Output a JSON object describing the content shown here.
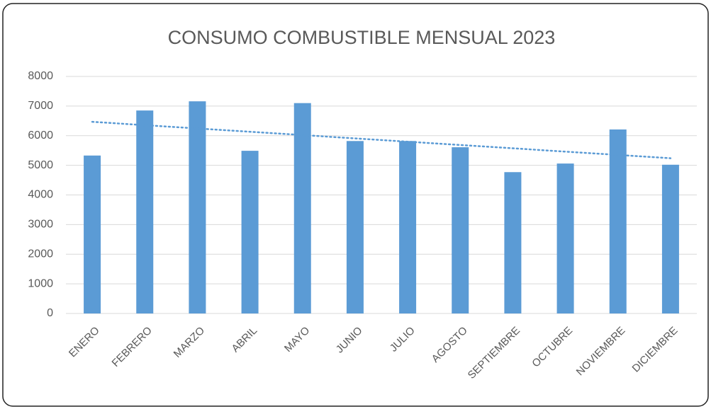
{
  "chart_data": {
    "type": "bar",
    "title": "CONSUMO COMBUSTIBLE MENSUAL 2023",
    "categories": [
      "ENERO",
      "FEBRERO",
      "MARZO",
      "ABRIL",
      "MAYO",
      "JUNIO",
      "JULIO",
      "AGOSTO",
      "SEPTIEMBRE",
      "OCTUBRE",
      "NOVIEMBRE",
      "DICIEMBRE"
    ],
    "values": [
      5330,
      6850,
      7160,
      5490,
      7100,
      5820,
      5820,
      5610,
      4770,
      5060,
      6210,
      5020
    ],
    "color": "#5b9bd5",
    "ylim": [
      0,
      8000
    ],
    "yticks": [
      0,
      1000,
      2000,
      3000,
      4000,
      5000,
      6000,
      7000,
      8000
    ],
    "grid": true,
    "trendline": {
      "type": "linear",
      "color": "#5b9bd5"
    }
  }
}
